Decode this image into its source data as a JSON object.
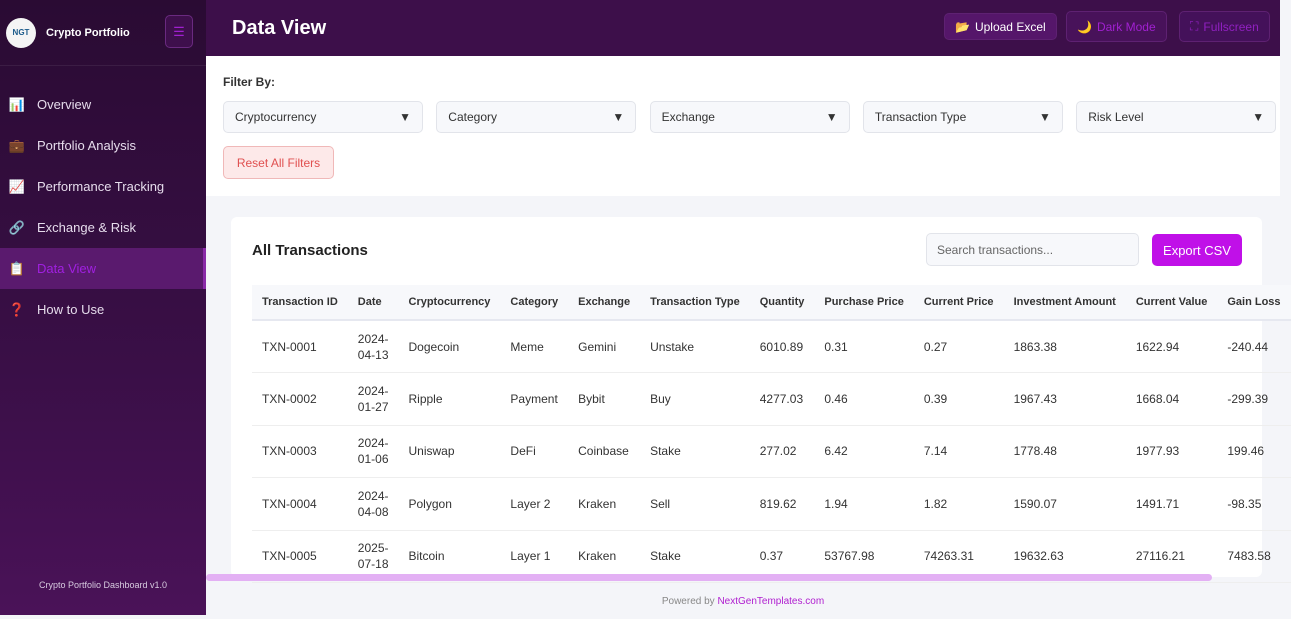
{
  "sidebar": {
    "logo_text": "NGT",
    "title": "Crypto Portfolio",
    "menu_icon": "hamburger-icon",
    "items": [
      {
        "label": "Overview",
        "icon": "bar-chart-icon",
        "glyph": "📊"
      },
      {
        "label": "Portfolio Analysis",
        "icon": "briefcase-icon",
        "glyph": "💼"
      },
      {
        "label": "Performance Tracking",
        "icon": "line-chart-icon",
        "glyph": "📈"
      },
      {
        "label": "Exchange & Risk",
        "icon": "link-icon",
        "glyph": "🔗"
      },
      {
        "label": "Data View",
        "icon": "clipboard-icon",
        "glyph": "📋",
        "active": true
      },
      {
        "label": "How to Use",
        "icon": "question-icon",
        "glyph": "❓"
      }
    ],
    "version": "Crypto Portfolio Dashboard v1.0"
  },
  "header": {
    "title": "Data View",
    "upload": "Upload Excel",
    "dark_mode": "Dark Mode",
    "fullscreen": "Fullscreen"
  },
  "filters": {
    "label": "Filter By:",
    "selects": [
      "Cryptocurrency",
      "Category",
      "Exchange",
      "Transaction Type",
      "Risk Level"
    ],
    "reset": "Reset All Filters"
  },
  "table": {
    "title": "All Transactions",
    "search_placeholder": "Search transactions...",
    "export": "Export CSV",
    "columns": [
      "Transaction ID",
      "Date",
      "Cryptocurrency",
      "Category",
      "Exchange",
      "Transaction Type",
      "Quantity",
      "Purchase Price",
      "Current Price",
      "Investment Amount",
      "Current Value",
      "Gain Loss"
    ],
    "rows": [
      [
        "TXN-0001",
        "2024-04-13",
        "Dogecoin",
        "Meme",
        "Gemini",
        "Unstake",
        "6010.89",
        "0.31",
        "0.27",
        "1863.38",
        "1622.94",
        "-240.44"
      ],
      [
        "TXN-0002",
        "2024-01-27",
        "Ripple",
        "Payment",
        "Bybit",
        "Buy",
        "4277.03",
        "0.46",
        "0.39",
        "1967.43",
        "1668.04",
        "-299.39"
      ],
      [
        "TXN-0003",
        "2024-01-06",
        "Uniswap",
        "DeFi",
        "Coinbase",
        "Stake",
        "277.02",
        "6.42",
        "7.14",
        "1778.48",
        "1977.93",
        "199.46"
      ],
      [
        "TXN-0004",
        "2024-04-08",
        "Polygon",
        "Layer 2",
        "Kraken",
        "Sell",
        "819.62",
        "1.94",
        "1.82",
        "1590.07",
        "1491.71",
        "-98.35"
      ],
      [
        "TXN-0005",
        "2025-07-18",
        "Bitcoin",
        "Layer 1",
        "Kraken",
        "Stake",
        "0.37",
        "53767.98",
        "74263.31",
        "19632.63",
        "27116.21",
        "7483.58"
      ]
    ]
  },
  "footer": {
    "prefix": "Powered by",
    "link": "NextGenTemplates.com"
  },
  "colors": {
    "sidebar": "#2a0b33",
    "header": "#3d0f4a",
    "accent": "#c010e8",
    "active_text": "#a020e0"
  }
}
